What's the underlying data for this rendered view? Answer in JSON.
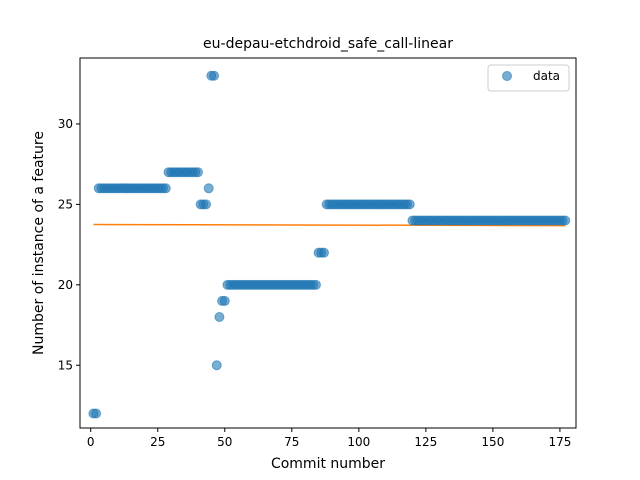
{
  "chart_data": {
    "type": "scatter",
    "title": "eu-depau-etchdroid_safe_call-linear",
    "xlabel": "Commit number",
    "ylabel": "Number of instance of a feature",
    "xlim": [
      -4,
      181
    ],
    "ylim": [
      11.1,
      34.1
    ],
    "xticks": [
      0,
      25,
      50,
      75,
      100,
      125,
      150,
      175
    ],
    "yticks": [
      15,
      20,
      25,
      30
    ],
    "grid": false,
    "legend": {
      "position": "top-right",
      "entries": [
        "data"
      ]
    },
    "colors": {
      "data": "#1f77b4",
      "fit": "#ff7f0e"
    },
    "series": [
      {
        "name": "data",
        "kind": "scatter",
        "runs": [
          {
            "x_start": 1,
            "x_end": 2,
            "y": 12
          },
          {
            "x_start": 3,
            "x_end": 28,
            "y": 26
          },
          {
            "x_start": 29,
            "x_end": 40,
            "y": 27
          },
          {
            "x_start": 41,
            "x_end": 43,
            "y": 25
          },
          {
            "x_start": 44,
            "x_end": 44,
            "y": 26
          },
          {
            "x_start": 45,
            "x_end": 46,
            "y": 33
          },
          {
            "x_start": 47,
            "x_end": 47,
            "y": 15
          },
          {
            "x_start": 48,
            "x_end": 48,
            "y": 18
          },
          {
            "x_start": 49,
            "x_end": 50,
            "y": 19
          },
          {
            "x_start": 51,
            "x_end": 84,
            "y": 20
          },
          {
            "x_start": 85,
            "x_end": 87,
            "y": 22
          },
          {
            "x_start": 88,
            "x_end": 119,
            "y": 25
          },
          {
            "x_start": 120,
            "x_end": 177,
            "y": 24
          }
        ]
      },
      {
        "kind": "line",
        "points": [
          [
            1,
            23.75
          ],
          [
            177,
            23.68
          ]
        ]
      }
    ]
  }
}
